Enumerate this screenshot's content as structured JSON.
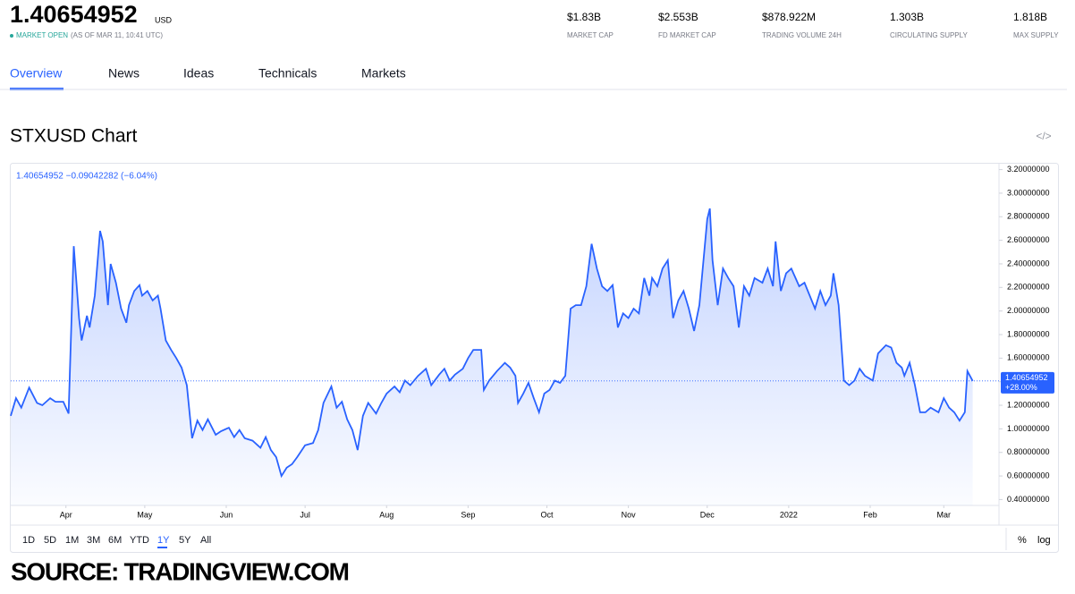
{
  "header": {
    "price": "1.40654952",
    "currency": "USD",
    "status": "MARKET OPEN",
    "status_detail": "(AS OF MAR 11, 10:41 UTC)",
    "stats": [
      {
        "value": "$1.83B",
        "label": "MARKET CAP"
      },
      {
        "value": "$2.553B",
        "label": "FD MARKET CAP"
      },
      {
        "value": "$878.922M",
        "label": "TRADING VOLUME 24H"
      },
      {
        "value": "1.303B",
        "label": "CIRCULATING SUPPLY"
      },
      {
        "value": "1.818B",
        "label": "MAX SUPPLY"
      }
    ]
  },
  "tabs": [
    "Overview",
    "News",
    "Ideas",
    "Technicals",
    "Markets"
  ],
  "embed_icon": "</>",
  "ranges": [
    "1D",
    "5D",
    "1M",
    "3M",
    "6M",
    "YTD",
    "1Y",
    "5Y",
    "All"
  ],
  "scale_options": [
    "%",
    "log"
  ],
  "source": "SOURCE: TRADINGVIEW.COM",
  "chart_data": {
    "type": "line",
    "title": "STXUSD Chart",
    "legend": "1.40654952 −0.09042282 (−6.04%)",
    "color": "#2962ff",
    "x": [
      0,
      2,
      4,
      7,
      10,
      12,
      15,
      17,
      20,
      22,
      24,
      26,
      27,
      29,
      30,
      32,
      34,
      35,
      37,
      38,
      40,
      42,
      44,
      45,
      47,
      49,
      50,
      52,
      54,
      56,
      57,
      59,
      61,
      63,
      65,
      67,
      69,
      71,
      73,
      75,
      78,
      80,
      83,
      85,
      87,
      89,
      92,
      95,
      97,
      99,
      101,
      103,
      105,
      107,
      109,
      112,
      115,
      117,
      119,
      122,
      124,
      126,
      128,
      130,
      132,
      134,
      136,
      139,
      141,
      143,
      146,
      148,
      150,
      152,
      155,
      158,
      160,
      163,
      165,
      167,
      169,
      172,
      174,
      176,
      179,
      180,
      182,
      185,
      188,
      190,
      192,
      193,
      195,
      197,
      199,
      201,
      203,
      205,
      207,
      209,
      211,
      213,
      215,
      217,
      219,
      221,
      223,
      225,
      227,
      229,
      231,
      233,
      235,
      237,
      239,
      241,
      243,
      244,
      246,
      248,
      250,
      252,
      254,
      256,
      258,
      260,
      262,
      265,
      266,
      267,
      269,
      271,
      273,
      275,
      277,
      279,
      281,
      283,
      286,
      288,
      290,
      291,
      293,
      295,
      297,
      300,
      302,
      304,
      306,
      308,
      310,
      312,
      313,
      315,
      317,
      319,
      321,
      323,
      325,
      328,
      330,
      333,
      335,
      337,
      339,
      340,
      342,
      344,
      346,
      348,
      350,
      353,
      355,
      357,
      359,
      361,
      363,
      364,
      366
    ],
    "values": [
      1.11,
      1.26,
      1.18,
      1.35,
      1.22,
      1.2,
      1.26,
      1.23,
      1.23,
      1.13,
      2.55,
      1.94,
      1.75,
      1.96,
      1.86,
      2.13,
      2.68,
      2.59,
      2.05,
      2.4,
      2.24,
      2.02,
      1.9,
      2.05,
      2.17,
      2.22,
      2.13,
      2.17,
      2.09,
      2.13,
      2.02,
      1.75,
      1.67,
      1.6,
      1.52,
      1.37,
      0.92,
      1.07,
      0.99,
      1.08,
      0.95,
      0.98,
      1.01,
      0.93,
      0.99,
      0.92,
      0.9,
      0.84,
      0.93,
      0.82,
      0.76,
      0.6,
      0.67,
      0.7,
      0.76,
      0.86,
      0.88,
      0.99,
      1.22,
      1.36,
      1.18,
      1.23,
      1.08,
      0.99,
      0.82,
      1.11,
      1.22,
      1.13,
      1.22,
      1.3,
      1.36,
      1.31,
      1.41,
      1.37,
      1.45,
      1.51,
      1.37,
      1.46,
      1.51,
      1.41,
      1.46,
      1.51,
      1.6,
      1.67,
      1.67,
      1.33,
      1.41,
      1.49,
      1.56,
      1.52,
      1.45,
      1.22,
      1.3,
      1.39,
      1.26,
      1.14,
      1.3,
      1.33,
      1.41,
      1.39,
      1.45,
      2.02,
      2.05,
      2.05,
      2.21,
      2.57,
      2.36,
      2.21,
      2.17,
      2.22,
      1.86,
      1.98,
      1.94,
      2.02,
      1.98,
      2.28,
      2.13,
      2.28,
      2.21,
      2.36,
      2.43,
      1.94,
      2.09,
      2.17,
      2.02,
      1.83,
      2.05,
      2.78,
      2.87,
      2.43,
      2.05,
      2.36,
      2.28,
      2.21,
      1.86,
      2.21,
      2.13,
      2.28,
      2.24,
      2.36,
      2.21,
      2.59,
      2.17,
      2.32,
      2.36,
      2.21,
      2.24,
      2.13,
      2.02,
      2.17,
      2.05,
      2.13,
      2.32,
      2.05,
      1.41,
      1.37,
      1.41,
      1.51,
      1.45,
      1.41,
      1.64,
      1.71,
      1.69,
      1.56,
      1.52,
      1.45,
      1.56,
      1.37,
      1.14,
      1.14,
      1.18,
      1.14,
      1.26,
      1.18,
      1.14,
      1.07,
      1.14,
      1.49,
      1.40654952
    ],
    "price_label": "1.40654952",
    "change_label": "+28.00%",
    "xlim": [
      0,
      376
    ],
    "ylim": [
      0.35,
      3.25
    ],
    "xticks": [
      {
        "value": 21,
        "label": "Apr"
      },
      {
        "value": 51,
        "label": "May"
      },
      {
        "value": 82,
        "label": "Jun"
      },
      {
        "value": 112,
        "label": "Jul"
      },
      {
        "value": 143,
        "label": "Aug"
      },
      {
        "value": 174,
        "label": "Sep"
      },
      {
        "value": 204,
        "label": "Oct"
      },
      {
        "value": 235,
        "label": "Nov"
      },
      {
        "value": 265,
        "label": "Dec"
      },
      {
        "value": 296,
        "label": "2022"
      },
      {
        "value": 327,
        "label": "Feb"
      },
      {
        "value": 355,
        "label": "Mar"
      }
    ],
    "yticks": [
      {
        "value": 0.4,
        "label": "0.40000000"
      },
      {
        "value": 0.6,
        "label": "0.60000000"
      },
      {
        "value": 0.8,
        "label": "0.80000000"
      },
      {
        "value": 1.0,
        "label": "1.00000000"
      },
      {
        "value": 1.2,
        "label": "1.20000000"
      },
      {
        "value": 1.4,
        "label": "1.40000000"
      },
      {
        "value": 1.6,
        "label": "1.60000000"
      },
      {
        "value": 1.8,
        "label": "1.80000000"
      },
      {
        "value": 2.0,
        "label": "2.00000000"
      },
      {
        "value": 2.2,
        "label": "2.20000000"
      },
      {
        "value": 2.4,
        "label": "2.40000000"
      },
      {
        "value": 2.6,
        "label": "2.60000000"
      },
      {
        "value": 2.8,
        "label": "2.80000000"
      },
      {
        "value": 3.0,
        "label": "3.00000000"
      },
      {
        "value": 3.2,
        "label": "3.20000000"
      }
    ],
    "grid": false
  }
}
